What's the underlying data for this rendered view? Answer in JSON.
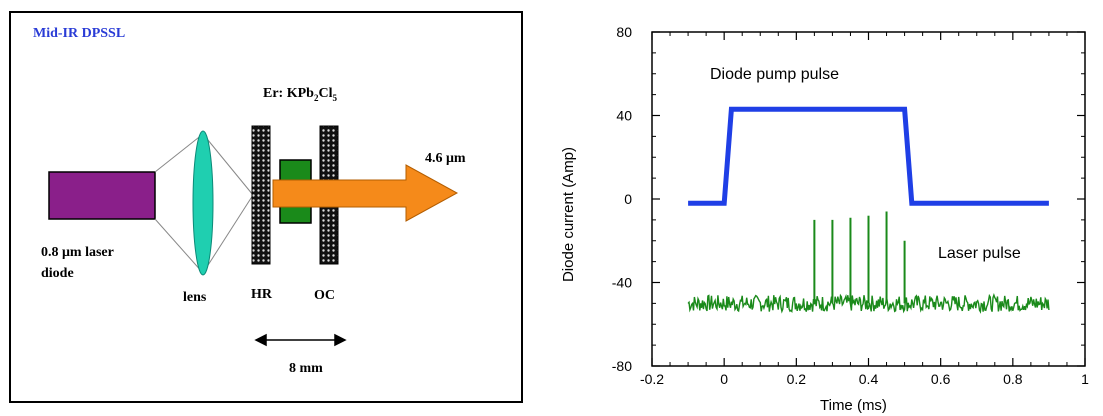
{
  "diagram": {
    "title": "Mid-IR DPSSL",
    "crystal_label": "Er: KPb",
    "crystal_sub1": "2",
    "crystal_mid": "Cl",
    "crystal_sub2": "5",
    "wavelength_label": "4.6 μm",
    "diode_label_line1": "0.8 μm laser",
    "diode_label_line2": "diode",
    "lens_label": "lens",
    "hr_label": "HR",
    "oc_label": "OC",
    "spacing_label": "8 mm",
    "colors": {
      "diode": "#8a1f8a",
      "lens": "#1fcfb0",
      "crystal": "#1a8a1a",
      "beam": "#f58a1a",
      "title": "#2a3cd6"
    }
  },
  "chart_data": {
    "type": "line",
    "xlabel": "Time  (ms)",
    "ylabel": "Diode current (Amp)",
    "xlim": [
      -0.2,
      1.0
    ],
    "ylim": [
      -80,
      80
    ],
    "xticks": [
      "-0.2",
      "0",
      "0.2",
      "0.4",
      "0.6",
      "0.8",
      "1"
    ],
    "yticks": [
      "80",
      "40",
      "0",
      "-40",
      "-80"
    ],
    "series": [
      {
        "name": "Diode pump pulse",
        "color": "#1f3fe6",
        "x": [
          -0.1,
          0.0,
          0.02,
          0.5,
          0.52,
          0.9
        ],
        "y": [
          -2,
          -2,
          43,
          43,
          -2,
          -2
        ]
      },
      {
        "name": "Laser pulse",
        "color": "#1a8a1a",
        "baseline": -50,
        "spikes_x": [
          0.25,
          0.3,
          0.35,
          0.4,
          0.45,
          0.5
        ],
        "spikes_y": [
          -10,
          -10,
          -9,
          -8,
          -6,
          -20
        ]
      }
    ],
    "annotations": [
      "Diode pump pulse",
      "Laser pulse"
    ]
  }
}
